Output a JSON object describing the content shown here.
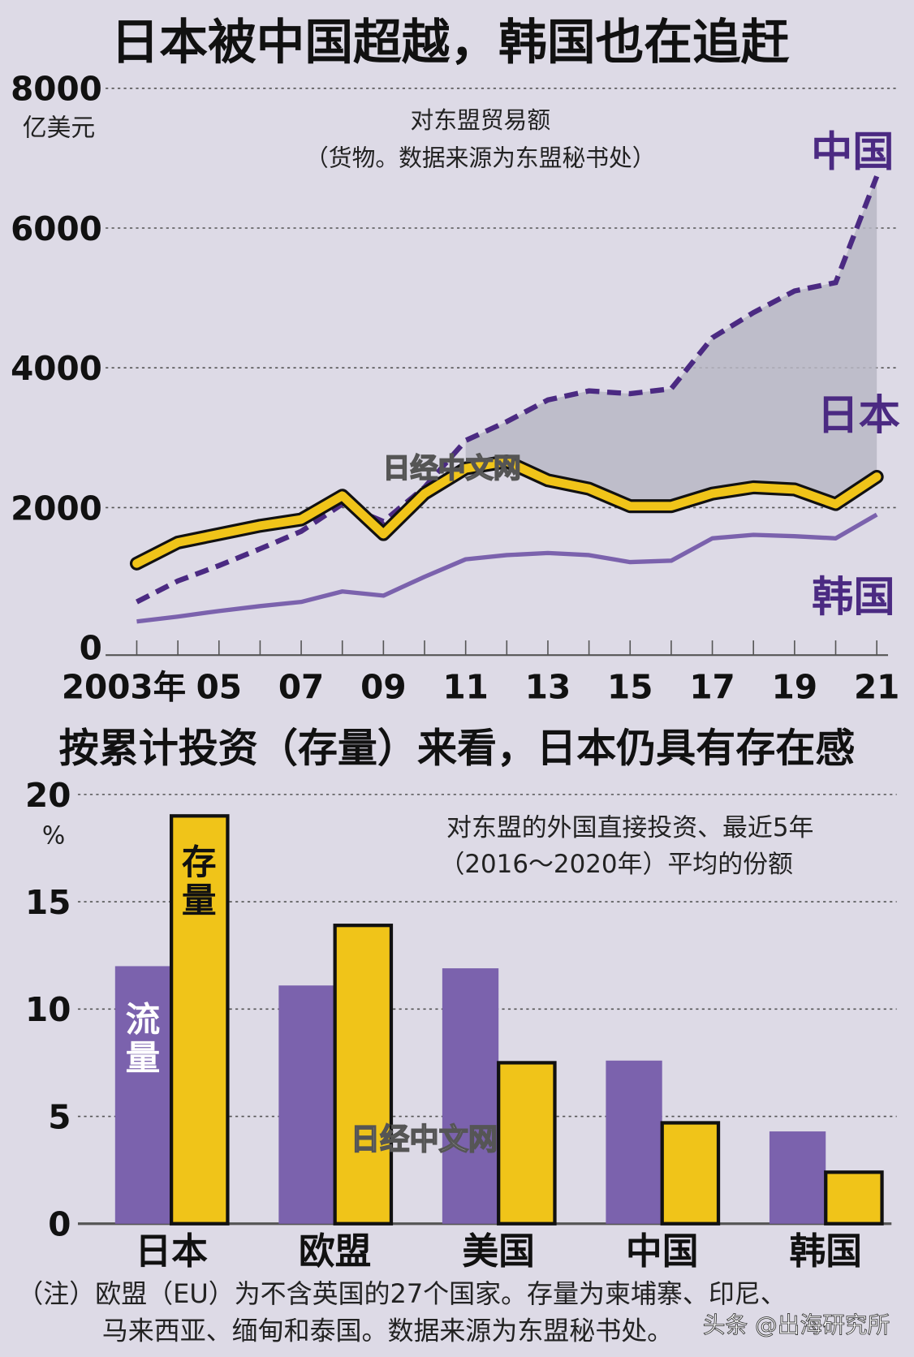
{
  "colors": {
    "background": "#dddae6",
    "china": "#4b2a82",
    "japan": "#f0c419",
    "korea": "#7b62ad",
    "flow_bar": "#7b62ad",
    "stock_bar": "#f0c419",
    "gap_fill": "#b9b7c4"
  },
  "chart_data": [
    {
      "type": "line",
      "title": "日本被中国超越，韩国也在追赶",
      "subtitle": "对东盟贸易额",
      "subtitle2": "（货物。数据来源为东盟秘书处）",
      "ylabel": "亿美元",
      "ylim": [
        0,
        8000
      ],
      "yticks": [
        "0",
        "2000",
        "4000",
        "6000",
        "8000"
      ],
      "xlim": [
        2003,
        2021
      ],
      "xticks": [
        "2003年",
        "05",
        "07",
        "09",
        "11",
        "13",
        "15",
        "17",
        "19",
        "21"
      ],
      "grid": true,
      "x": [
        2003,
        2004,
        2005,
        2006,
        2007,
        2008,
        2009,
        2010,
        2011,
        2012,
        2013,
        2014,
        2015,
        2016,
        2017,
        2018,
        2019,
        2020,
        2021
      ],
      "series": [
        {
          "name": "中国",
          "style": "dashed",
          "values": [
            650,
            950,
            1170,
            1410,
            1660,
            2050,
            1800,
            2290,
            2960,
            3230,
            3540,
            3670,
            3630,
            3700,
            4430,
            4790,
            5100,
            5220,
            6740
          ]
        },
        {
          "name": "日本",
          "style": "thick",
          "values": [
            1200,
            1500,
            1620,
            1740,
            1830,
            2170,
            1620,
            2200,
            2560,
            2660,
            2390,
            2270,
            2020,
            2020,
            2200,
            2290,
            2260,
            2050,
            2440
          ]
        },
        {
          "name": "韩国",
          "style": "thin",
          "values": [
            370,
            440,
            520,
            590,
            650,
            800,
            740,
            1010,
            1260,
            1320,
            1350,
            1320,
            1220,
            1240,
            1560,
            1610,
            1590,
            1560,
            1900
          ]
        }
      ],
      "watermark": "日经中文网"
    },
    {
      "type": "bar",
      "title": "按累计投资（存量）来看，日本仍具有存在感",
      "subtitle": "对东盟的外国直接投资、最近5年",
      "subtitle2": "（2016～2020年）平均的份额",
      "ylabel": "%",
      "ylim": [
        0,
        20
      ],
      "yticks": [
        "0",
        "5",
        "10",
        "15",
        "20"
      ],
      "grid": true,
      "categories": [
        "日本",
        "欧盟",
        "美国",
        "中国",
        "韩国"
      ],
      "series": [
        {
          "name": "流量",
          "values": [
            12.0,
            11.1,
            11.9,
            7.6,
            4.3
          ]
        },
        {
          "name": "存量",
          "values": [
            19.0,
            13.9,
            7.5,
            4.7,
            2.4
          ]
        }
      ],
      "watermark": "日经中文网"
    }
  ],
  "note_line1": "（注）欧盟（EU）为不含英国的27个国家。存量为柬埔寨、印尼、",
  "note_line2": "马来西亚、缅甸和泰国。数据来源为东盟秘书处。",
  "credit": "头条 @出海研究所"
}
